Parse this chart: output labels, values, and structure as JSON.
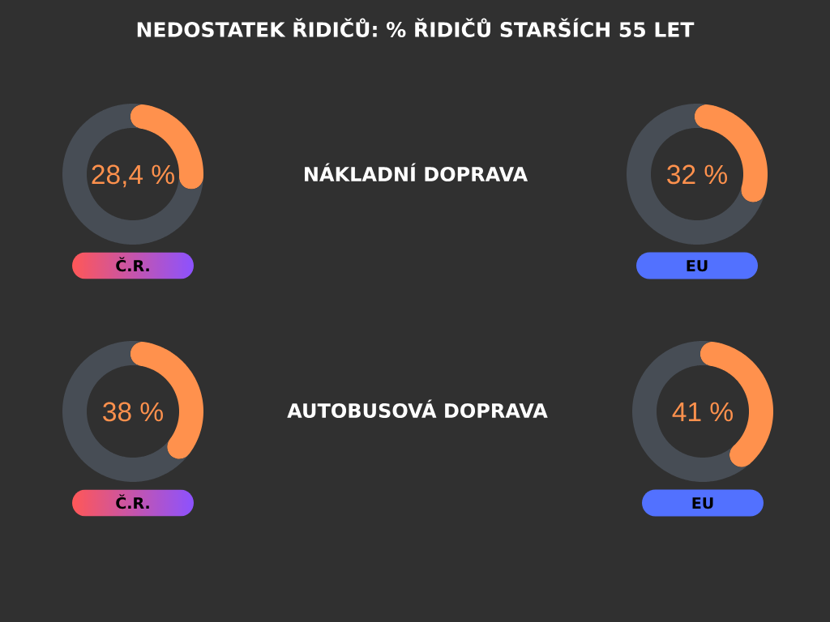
{
  "chart_data": [
    {
      "type": "other",
      "title": "NEDOSTATEK ŘIDIČŮ: % ŘIDIČŮ STARŠÍCH 55 LET"
    },
    {
      "type": "donut",
      "categories": [
        null,
        null
      ],
      "values": [
        28.4,
        71.6
      ],
      "colors": [
        "#ff914d",
        "#474d55"
      ],
      "annotations": [
        "28,4 %"
      ],
      "xlabel": "Č.R."
    },
    {
      "type": "other",
      "title": "NÁKLADNÍ DOPRAVA"
    },
    {
      "type": "donut",
      "categories": [
        null,
        null
      ],
      "values": [
        32,
        68
      ],
      "colors": [
        "#ff914d",
        "#474d55"
      ],
      "annotations": [
        "32 %"
      ],
      "xlabel": "EU"
    },
    {
      "type": "donut",
      "categories": [
        null,
        null
      ],
      "values": [
        38,
        62
      ],
      "colors": [
        "#ff914d",
        "#474d55"
      ],
      "annotations": [
        "38 %"
      ],
      "xlabel": "Č.R."
    },
    {
      "type": "other",
      "title": "AUTOBUSOVÁ DOPRAVA"
    },
    {
      "type": "donut",
      "categories": [
        null,
        null
      ],
      "values": [
        41,
        59
      ],
      "colors": [
        "#ff914d",
        "#474d55"
      ],
      "annotations": [
        "41 %"
      ],
      "xlabel": "EU"
    }
  ]
}
